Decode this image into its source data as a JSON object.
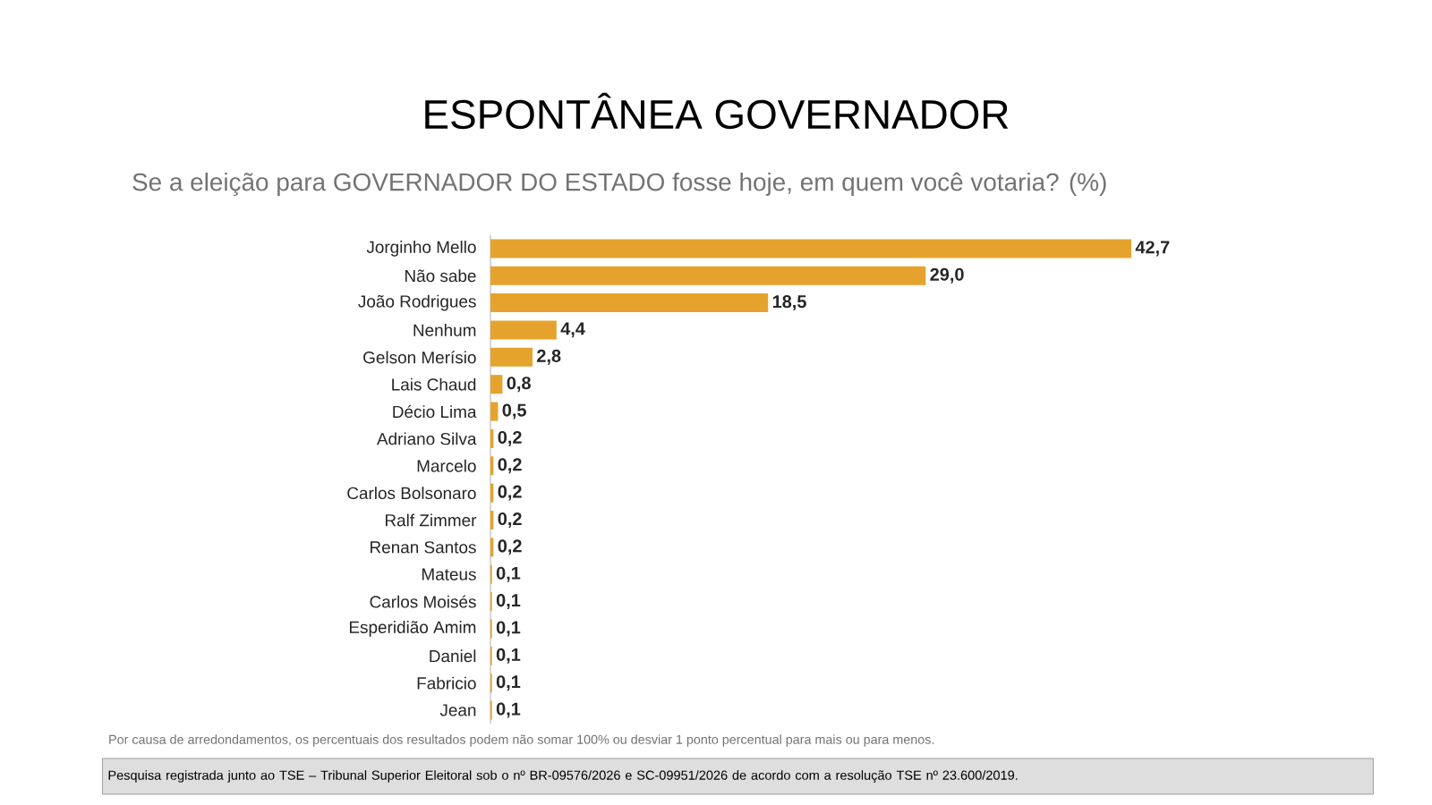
{
  "chart_data": {
    "type": "bar",
    "orientation": "horizontal",
    "title": "ESPONTÂNEA GOVERNADOR",
    "subtitle": "Se a eleição para GOVERNADOR DO ESTADO fosse hoje, em quem você votaria? (%)",
    "categories": [
      "Jorginho Mello",
      "Não sabe",
      "João Rodrigues",
      "Nenhum",
      "Gelson Merísio",
      "Lais Chaud",
      "Décio Lima",
      "Adriano Silva",
      "Marcelo",
      "Carlos Bolsonaro",
      "Ralf Zimmer",
      "Renan Santos",
      "Mateus",
      "Carlos Moisés",
      "Esperidião Amim",
      "Daniel",
      "Fabricio",
      "Jean"
    ],
    "values": [
      42.7,
      29.0,
      18.5,
      4.4,
      2.8,
      0.8,
      0.5,
      0.2,
      0.2,
      0.2,
      0.2,
      0.2,
      0.1,
      0.1,
      0.1,
      0.1,
      0.1,
      0.1
    ],
    "value_labels": [
      "42,7",
      "29,0",
      "18,5",
      "4,4",
      "2,8",
      "0,8",
      "0,5",
      "0,2",
      "0,2",
      "0,2",
      "0,2",
      "0,2",
      "0,1",
      "0,1",
      "0,1",
      "0,1",
      "0,1",
      "0,1"
    ],
    "color": "#e5a32d",
    "annotations": [
      "Por causa de arredondamentos, os percentuais dos resultados podem não somar 100% ou desviar 1 ponto percentual para mais ou para menos.",
      "Pesquisa registrada junto ao TSE – Tribunal Superior Eleitoral sob o nº BR-09576/2026 e SC-09951/2026 de acordo com a resolução TSE nº 23.600/2019."
    ]
  }
}
